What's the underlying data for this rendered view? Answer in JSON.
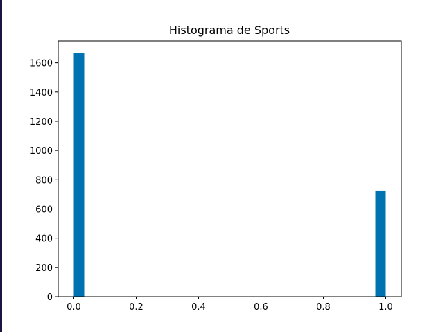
{
  "chart_data": {
    "type": "bar",
    "title": "Histograma de Sports",
    "xlabel": "",
    "ylabel": "",
    "xlim": [
      -0.05,
      1.05
    ],
    "ylim": [
      0,
      1750
    ],
    "bar_width": 0.0333,
    "bars": [
      {
        "x_start": 0.0,
        "value": 1668
      },
      {
        "x_start": 0.9667,
        "value": 726
      }
    ],
    "x_ticks": [
      "0.0",
      "0.2",
      "0.4",
      "0.6",
      "0.8",
      "1.0"
    ],
    "x_tick_values": [
      0.0,
      0.2,
      0.4,
      0.6,
      0.8,
      1.0
    ],
    "y_ticks": [
      "0",
      "200",
      "400",
      "600",
      "800",
      "1000",
      "1200",
      "1400",
      "1600"
    ],
    "y_tick_values": [
      0,
      200,
      400,
      600,
      800,
      1000,
      1200,
      1400,
      1600
    ],
    "bar_color": "#0072b2",
    "grid": false,
    "legend": false
  }
}
